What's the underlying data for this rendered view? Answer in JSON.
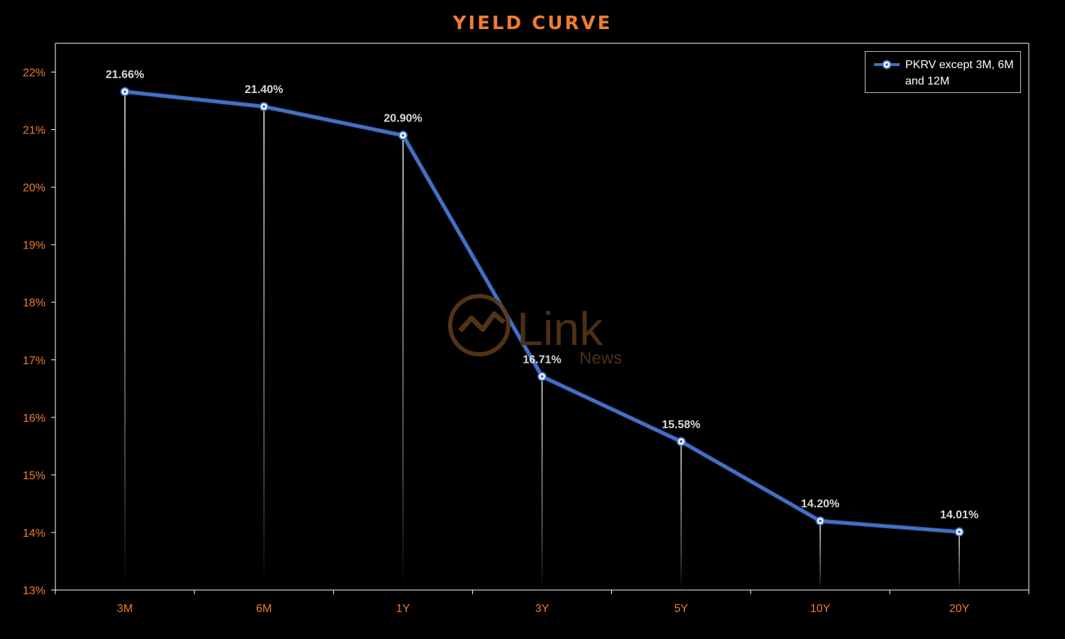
{
  "title": "YIELD CURVE",
  "colors": {
    "background": "#000000",
    "accent_orange": "#ed7d31",
    "series_line": "#4472c4",
    "data_label": "#d9d9d9",
    "axis": "#ffffff",
    "watermark": "#5a3a18"
  },
  "watermark": {
    "main": "Link",
    "sub": "News"
  },
  "chart_data": {
    "type": "line",
    "categories": [
      "3M",
      "6M",
      "1Y",
      "3Y",
      "5Y",
      "10Y",
      "20Y"
    ],
    "series": [
      {
        "name": "PKRV except 3M, 6M and 12M",
        "values": [
          21.66,
          21.4,
          20.9,
          16.71,
          15.58,
          14.2,
          14.01
        ],
        "data_labels": [
          "21.66%",
          "21.40%",
          "20.90%",
          "16.71%",
          "15.58%",
          "14.20%",
          "14.01%"
        ]
      }
    ],
    "ylim": [
      13,
      22.5
    ],
    "yticks": [
      13,
      14,
      15,
      16,
      17,
      18,
      19,
      20,
      21,
      22
    ],
    "ytick_labels": [
      "13%",
      "14%",
      "15%",
      "16%",
      "17%",
      "18%",
      "19%",
      "20%",
      "21%",
      "22%"
    ],
    "legend_position": "top-right",
    "drop_lines": true,
    "grid": false
  }
}
